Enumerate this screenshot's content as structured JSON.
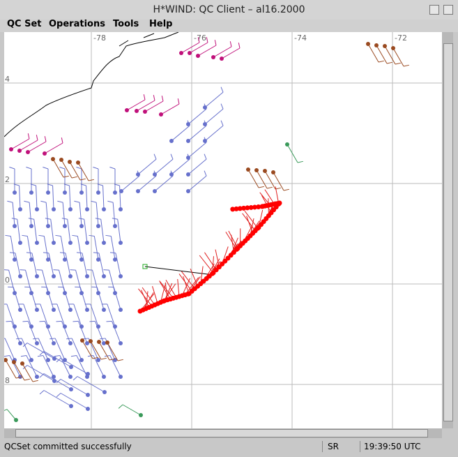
{
  "window": {
    "title": "H*WIND: QC Client – al16.2000"
  },
  "menu": {
    "items": [
      "QC Set",
      "Operations",
      "Tools",
      "Help"
    ]
  },
  "map": {
    "lon_labels": [
      "-78",
      "-76",
      "-74",
      "-72"
    ],
    "lat_labels": [
      "4",
      "2",
      "0",
      "8"
    ]
  },
  "status": {
    "message": "QCSet committed successfully",
    "mode": "SR",
    "time": "19:39:50 UTC"
  }
}
